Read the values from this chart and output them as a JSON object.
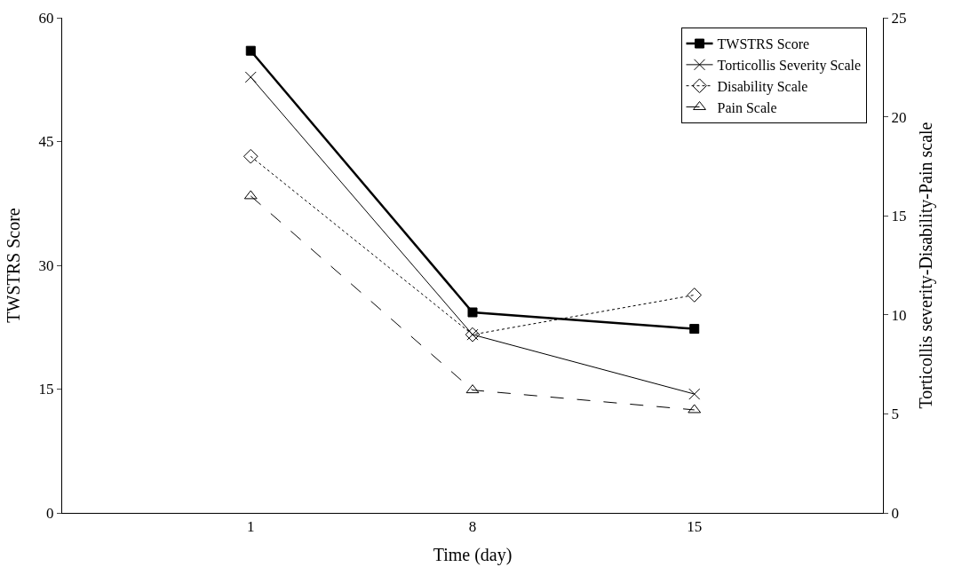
{
  "chart_data": {
    "type": "line",
    "xlabel": "Time (day)",
    "ylabel": "TWSTRS Score",
    "y2label": "Torticollis severity-Disability-Pain scale",
    "categories": [
      "1",
      "8",
      "15"
    ],
    "series": [
      {
        "name": "TWSTRS Score",
        "color": "#000000",
        "values": [
          56,
          24.3,
          22.3
        ],
        "marker": "square",
        "line_style": "solid"
      },
      {
        "name": "Torticollis Severity Scale",
        "color": "#000000",
        "values": [
          22,
          9,
          6
        ],
        "axis": "y2",
        "marker": "cross",
        "line_style": "solid"
      },
      {
        "name": "Disability Scale",
        "color": "#000000",
        "values": [
          18,
          9,
          11
        ],
        "axis": "y2",
        "marker": "diamond",
        "line_style": "dotted"
      },
      {
        "name": "Pain Scale",
        "color": "#000000",
        "values": [
          16,
          6.2,
          5.2
        ],
        "axis": "y2",
        "marker": "triangle",
        "line_style": "dashed"
      }
    ],
    "ylim": [
      0,
      60
    ],
    "yticks": [
      0,
      15,
      30,
      45,
      60
    ],
    "y2lim": [
      0,
      25
    ],
    "y2ticks": [
      0,
      5,
      10,
      15,
      20,
      25
    ],
    "legend": "top right"
  }
}
